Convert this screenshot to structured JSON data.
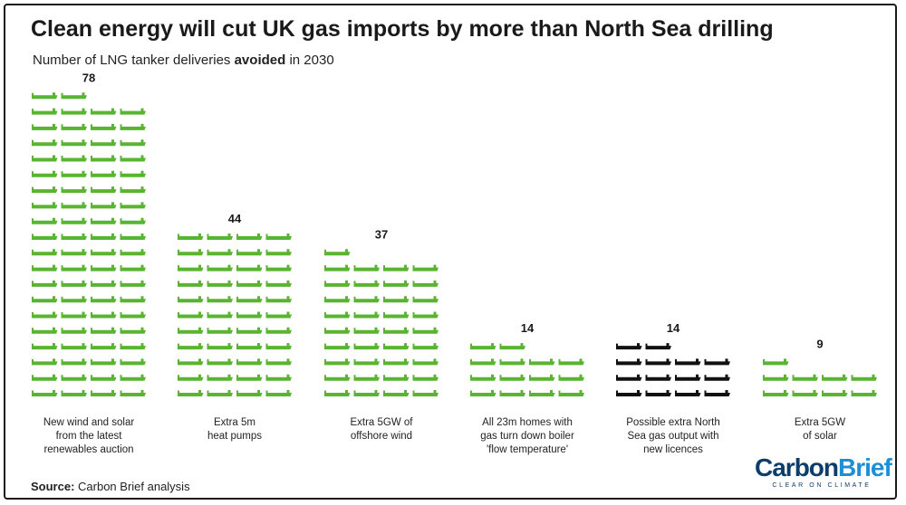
{
  "header": {
    "title": "Clean energy will cut UK gas imports by more than North Sea drilling",
    "subtitle_before": "Number of LNG tanker deliveries ",
    "subtitle_bold": "avoided",
    "subtitle_after": " in 2030"
  },
  "footer": {
    "source_label": "Source:",
    "source_text": " Carbon Brief analysis"
  },
  "logo": {
    "part1": "Carbon",
    "part2": "Brief",
    "tagline": "CLEAR ON CLIMATE"
  },
  "colors": {
    "clean": "#58b431",
    "north_sea": "#111111",
    "logo_dark": "#0c3d6b",
    "logo_light": "#1e8fd4"
  },
  "chart_data": {
    "type": "bar",
    "style": "isotype (one tanker icon per delivery, four per row)",
    "title": "Clean energy will cut UK gas imports by more than North Sea drilling",
    "subtitle": "Number of LNG tanker deliveries avoided in 2030",
    "categories": [
      [
        "New wind and solar",
        "from the latest",
        "renewables auction"
      ],
      [
        "Extra 5m",
        "heat pumps"
      ],
      [
        "Extra 5GW of",
        "offshore wind"
      ],
      [
        "All 23m homes with",
        "gas turn down boiler",
        "'flow temperature'"
      ],
      [
        "Possible extra North",
        "Sea gas output with",
        "new licences"
      ],
      [
        "Extra 5GW",
        "of solar"
      ]
    ],
    "values": [
      78,
      44,
      37,
      14,
      14,
      9
    ],
    "value_labels": [
      "78",
      "44",
      "37",
      "14",
      "14",
      "9"
    ],
    "highlight": [
      false,
      false,
      false,
      false,
      true,
      false
    ]
  }
}
